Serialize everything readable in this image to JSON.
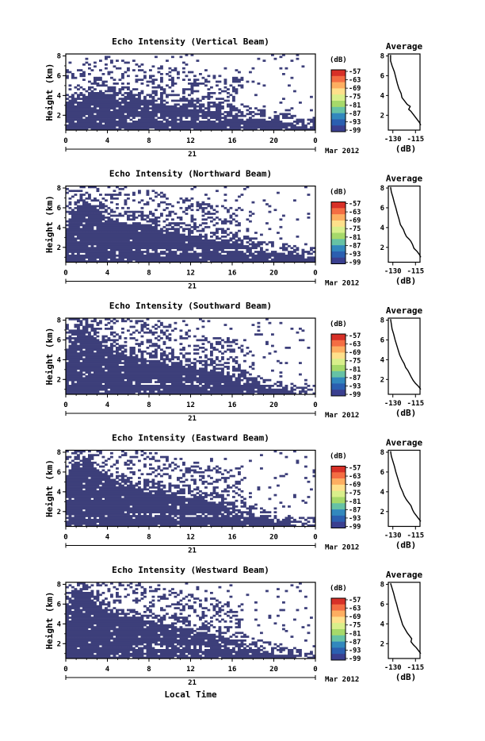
{
  "figure": {
    "x_axis_title": "Local Time",
    "date_label": "21",
    "month_label": "Mar 2012",
    "colorbar_unit": "(dB)",
    "colorbar_ticks": [
      "-57",
      "-63",
      "-69",
      "-75",
      "-81",
      "-87",
      "-93",
      "-99"
    ],
    "colorbar_colors": [
      "#d73027",
      "#f46d43",
      "#fdae61",
      "#fee08b",
      "#d9ef8b",
      "#a6d96a",
      "#66c2a5",
      "#3288bd",
      "#2b5fb0",
      "#3a3f8f"
    ],
    "fill_color": "#3d3f7a",
    "avg_title": "Average",
    "avg_xlabel": "(dB)"
  },
  "panels": [
    {
      "title": "Echo Intensity (Vertical Beam)",
      "ylabel": "Height (km)"
    },
    {
      "title": "Echo Intensity (Northward Beam)",
      "ylabel": "Height (km)"
    },
    {
      "title": "Echo Intensity (Southward Beam)",
      "ylabel": "Height (km)"
    },
    {
      "title": "Echo Intensity (Eastward Beam)",
      "ylabel": "Height (km)"
    },
    {
      "title": "Echo Intensity (Westward Beam)",
      "ylabel": "Height (km)"
    }
  ],
  "chart_data": [
    {
      "type": "heatmap",
      "title": "Echo Intensity (Vertical Beam)",
      "xlabel": "",
      "ylabel": "Height (km)",
      "x_ticks": [
        "0",
        "4",
        "8",
        "12",
        "16",
        "20",
        "0"
      ],
      "y_ticks": [
        "2",
        "4",
        "6",
        "8"
      ],
      "xlim": [
        0,
        24
      ],
      "ylim": [
        0.5,
        8.2
      ],
      "colorbar": {
        "label": "(dB)",
        "ticks": [
          -57,
          -63,
          -69,
          -75,
          -81,
          -87,
          -93,
          -99
        ]
      },
      "echo_top_km_by_hour": [
        3.8,
        3.6,
        4.2,
        5.0,
        4.8,
        4.4,
        4.5,
        4.3,
        4.0,
        3.8,
        3.6,
        3.4,
        3.2,
        3.1,
        3.0,
        2.9,
        2.7,
        2.6,
        2.4,
        2.2,
        2.0,
        1.8,
        1.6,
        1.5
      ]
    },
    {
      "type": "heatmap",
      "title": "Echo Intensity (Northward Beam)",
      "xlabel": "",
      "ylabel": "Height (km)",
      "x_ticks": [
        "0",
        "4",
        "8",
        "12",
        "16",
        "20",
        "0"
      ],
      "y_ticks": [
        "2",
        "4",
        "6",
        "8"
      ],
      "xlim": [
        0,
        24
      ],
      "ylim": [
        0.5,
        8.2
      ],
      "colorbar": {
        "label": "(dB)",
        "ticks": [
          -57,
          -63,
          -69,
          -75,
          -81,
          -87,
          -93,
          -99
        ]
      },
      "echo_top_km_by_hour": [
        4.2,
        6.8,
        7.2,
        6.5,
        5.6,
        5.2,
        5.0,
        4.8,
        4.6,
        4.4,
        4.2,
        4.0,
        3.8,
        3.6,
        3.4,
        3.2,
        3.0,
        2.8,
        2.6,
        2.4,
        2.2,
        2.0,
        1.8,
        1.6
      ]
    },
    {
      "type": "heatmap",
      "title": "Echo Intensity (Southward Beam)",
      "xlabel": "",
      "ylabel": "Height (km)",
      "x_ticks": [
        "0",
        "4",
        "8",
        "12",
        "16",
        "20",
        "0"
      ],
      "y_ticks": [
        "2",
        "4",
        "6",
        "8"
      ],
      "xlim": [
        0,
        24
      ],
      "ylim": [
        0.5,
        8.2
      ],
      "colorbar": {
        "label": "(dB)",
        "ticks": [
          -57,
          -63,
          -69,
          -75,
          -81,
          -87,
          -93,
          -99
        ]
      },
      "echo_top_km_by_hour": [
        5.2,
        7.6,
        7.8,
        6.5,
        5.8,
        5.4,
        5.0,
        4.8,
        4.6,
        4.4,
        4.2,
        4.0,
        3.8,
        3.6,
        3.4,
        3.2,
        3.0,
        2.6,
        2.2,
        1.8,
        1.5,
        1.3,
        1.2,
        1.1
      ]
    },
    {
      "type": "heatmap",
      "title": "Echo Intensity (Eastward Beam)",
      "xlabel": "",
      "ylabel": "Height (km)",
      "x_ticks": [
        "0",
        "4",
        "8",
        "12",
        "16",
        "20",
        "0"
      ],
      "y_ticks": [
        "2",
        "4",
        "6",
        "8"
      ],
      "xlim": [
        0,
        24
      ],
      "ylim": [
        0.5,
        8.2
      ],
      "colorbar": {
        "label": "(dB)",
        "ticks": [
          -57,
          -63,
          -69,
          -75,
          -81,
          -87,
          -93,
          -99
        ]
      },
      "echo_top_km_by_hour": [
        5.8,
        7.8,
        7.9,
        6.8,
        6.0,
        5.6,
        5.2,
        5.0,
        4.8,
        4.6,
        4.4,
        4.2,
        4.0,
        3.8,
        3.6,
        3.4,
        3.0,
        2.6,
        2.2,
        1.9,
        1.6,
        1.4,
        1.2,
        1.1
      ]
    },
    {
      "type": "heatmap",
      "title": "Echo Intensity (Westward Beam)",
      "xlabel": "",
      "ylabel": "Height (km)",
      "x_ticks": [
        "0",
        "4",
        "8",
        "12",
        "16",
        "20",
        "0"
      ],
      "y_ticks": [
        "2",
        "4",
        "6",
        "8"
      ],
      "xlim": [
        0,
        24
      ],
      "ylim": [
        0.5,
        8.2
      ],
      "colorbar": {
        "label": "(dB)",
        "ticks": [
          -57,
          -63,
          -69,
          -75,
          -81,
          -87,
          -93,
          -99
        ]
      },
      "echo_top_km_by_hour": [
        5.6,
        7.8,
        7.8,
        6.5,
        5.8,
        5.4,
        5.2,
        5.0,
        4.8,
        4.6,
        4.4,
        4.2,
        4.0,
        3.8,
        3.6,
        3.4,
        3.0,
        2.6,
        2.2,
        1.9,
        1.6,
        1.4,
        1.2,
        1.1
      ]
    },
    {
      "type": "line",
      "title": "Average",
      "xlabel": "(dB)",
      "ylabel": "",
      "x_ticks": [
        "-130",
        "-115"
      ],
      "y_ticks": [
        "2",
        "4",
        "6",
        "8"
      ],
      "xlim": [
        -133,
        -112
      ],
      "ylim": [
        0.5,
        8.2
      ],
      "series": [
        {
          "x": [
            -111.5,
            -112.5,
            -114.0,
            -116.0,
            -118.0,
            -119.5,
            -118.5,
            -120.5,
            -122.0,
            -124.0,
            -124.5,
            -126.0,
            -127.0,
            -128.0,
            -129.0,
            -130.5,
            -131.5,
            -131.5
          ],
          "y": [
            1.0,
            1.3,
            1.6,
            2.0,
            2.4,
            2.6,
            2.9,
            3.1,
            3.4,
            3.8,
            4.2,
            4.7,
            5.2,
            5.8,
            6.4,
            7.0,
            7.5,
            8.1
          ]
        }
      ]
    },
    {
      "type": "line",
      "title": "Average",
      "xlabel": "(dB)",
      "ylabel": "",
      "x_ticks": [
        "-130",
        "-115"
      ],
      "y_ticks": [
        "2",
        "4",
        "6",
        "8"
      ],
      "xlim": [
        -133,
        -112
      ],
      "ylim": [
        0.5,
        8.2
      ],
      "series": [
        {
          "x": [
            -111.5,
            -112.5,
            -114.0,
            -116.0,
            -117.0,
            -118.0,
            -119.0,
            -121.0,
            -122.0,
            -123.0,
            -125.0,
            -126.0,
            -127.0,
            -128.0,
            -129.0,
            -130.0,
            -131.0,
            -131.5
          ],
          "y": [
            1.0,
            1.3,
            1.6,
            1.9,
            2.3,
            2.6,
            2.8,
            3.1,
            3.4,
            3.8,
            4.3,
            4.9,
            5.4,
            6.0,
            6.5,
            7.1,
            7.6,
            8.1
          ]
        }
      ]
    },
    {
      "type": "line",
      "title": "Average",
      "xlabel": "(dB)",
      "ylabel": "",
      "x_ticks": [
        "-130",
        "-115"
      ],
      "y_ticks": [
        "2",
        "4",
        "6",
        "8"
      ],
      "xlim": [
        -133,
        -112
      ],
      "ylim": [
        0.5,
        8.2
      ],
      "series": [
        {
          "x": [
            -111.5,
            -113.0,
            -115.0,
            -116.5,
            -118.0,
            -119.0,
            -120.0,
            -121.5,
            -122.5,
            -124.0,
            -125.5,
            -126.5,
            -127.5,
            -128.5,
            -129.5,
            -130.5,
            -131.0,
            -131.5
          ],
          "y": [
            1.0,
            1.3,
            1.6,
            1.9,
            2.3,
            2.6,
            2.9,
            3.2,
            3.6,
            4.0,
            4.5,
            5.0,
            5.5,
            6.0,
            6.6,
            7.1,
            7.6,
            8.1
          ]
        }
      ]
    },
    {
      "type": "line",
      "title": "Average",
      "xlabel": "(dB)",
      "ylabel": "",
      "x_ticks": [
        "-130",
        "-115"
      ],
      "y_ticks": [
        "2",
        "4",
        "6",
        "8"
      ],
      "xlim": [
        -133,
        -112
      ],
      "ylim": [
        0.5,
        8.2
      ],
      "series": [
        {
          "x": [
            -111.5,
            -113.0,
            -114.5,
            -116.0,
            -117.0,
            -118.0,
            -119.5,
            -121.0,
            -122.5,
            -123.5,
            -125.0,
            -126.0,
            -127.0,
            -128.0,
            -129.0,
            -130.0,
            -131.0,
            -131.5
          ],
          "y": [
            1.0,
            1.3,
            1.6,
            1.9,
            2.2,
            2.6,
            2.9,
            3.2,
            3.6,
            4.0,
            4.5,
            5.0,
            5.5,
            6.0,
            6.6,
            7.1,
            7.6,
            8.1
          ]
        }
      ]
    },
    {
      "type": "line",
      "title": "Average",
      "xlabel": "(dB)",
      "ylabel": "",
      "x_ticks": [
        "-130",
        "-115"
      ],
      "y_ticks": [
        "2",
        "4",
        "6",
        "8"
      ],
      "xlim": [
        -133,
        -112
      ],
      "ylim": [
        0.5,
        8.2
      ],
      "series": [
        {
          "x": [
            -111.5,
            -113.0,
            -114.5,
            -116.5,
            -118.0,
            -117.5,
            -119.0,
            -120.5,
            -122.0,
            -123.5,
            -124.5,
            -125.5,
            -126.5,
            -127.5,
            -128.5,
            -129.5,
            -130.5,
            -131.5
          ],
          "y": [
            1.0,
            1.3,
            1.6,
            1.9,
            2.2,
            2.5,
            2.8,
            3.1,
            3.5,
            3.9,
            4.4,
            4.9,
            5.4,
            6.0,
            6.5,
            7.1,
            7.6,
            8.1
          ]
        }
      ]
    }
  ]
}
